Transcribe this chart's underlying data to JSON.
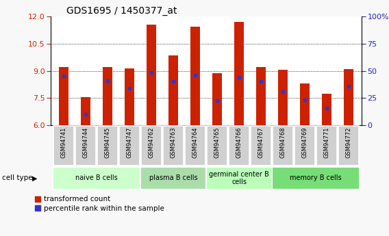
{
  "title": "GDS1695 / 1450377_at",
  "samples": [
    "GSM94741",
    "GSM94744",
    "GSM94745",
    "GSM94747",
    "GSM94762",
    "GSM94763",
    "GSM94764",
    "GSM94765",
    "GSM94766",
    "GSM94767",
    "GSM94768",
    "GSM94769",
    "GSM94771",
    "GSM94772"
  ],
  "transformed_count": [
    9.2,
    7.55,
    9.2,
    9.15,
    11.55,
    9.85,
    11.45,
    8.85,
    11.7,
    9.2,
    9.05,
    8.3,
    7.75,
    9.1
  ],
  "percentile_rank": [
    8.7,
    6.6,
    8.45,
    8.05,
    8.9,
    8.4,
    8.75,
    7.35,
    8.65,
    8.4,
    7.85,
    7.4,
    6.95,
    8.15
  ],
  "ymin": 6,
  "ymax": 12,
  "yticks_left": [
    6,
    7.5,
    9,
    10.5,
    12
  ],
  "yticks_right_labels": [
    "0",
    "25",
    "50",
    "75",
    "100%"
  ],
  "bar_color": "#cc2200",
  "percentile_color": "#3333cc",
  "cell_groups": [
    {
      "label": "naive B cells",
      "start": 0,
      "end": 3,
      "color": "#ccffcc"
    },
    {
      "label": "plasma B cells",
      "start": 4,
      "end": 6,
      "color": "#aaddaa"
    },
    {
      "label": "germinal center B\ncells",
      "start": 7,
      "end": 9,
      "color": "#bbffbb"
    },
    {
      "label": "memory B cells",
      "start": 10,
      "end": 13,
      "color": "#77dd77"
    }
  ],
  "legend_labels": [
    "transformed count",
    "percentile rank within the sample"
  ],
  "cell_type_label": "cell type",
  "bar_width": 0.45,
  "sample_box_color": "#d0d0d0",
  "fig_bg": "#f8f8f8"
}
